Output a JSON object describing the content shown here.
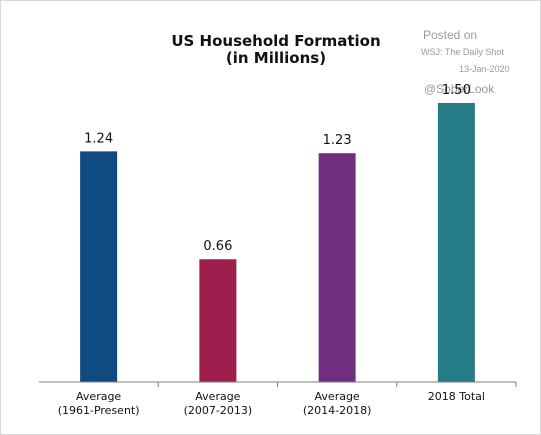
{
  "watermark": {
    "posted_on": "Posted on",
    "source": "WSJ: The Daily Shot",
    "date": "13-Jan-2020",
    "handle": "@SoberLook"
  },
  "chart_data": {
    "type": "bar",
    "title": [
      "US Household Formation",
      "(in Millions)"
    ],
    "categories": [
      [
        "Average",
        "(1961-Present)"
      ],
      [
        "Average",
        "(2007-2013)"
      ],
      [
        "Average",
        "(2014-2018)"
      ],
      [
        "2018 Total"
      ]
    ],
    "values": [
      1.24,
      0.66,
      1.23,
      1.5
    ],
    "value_labels": [
      "1.24",
      "0.66",
      "1.23",
      "1.50"
    ],
    "colors": [
      "#0F4A80",
      "#9E1F4E",
      "#6F2E7E",
      "#267C86"
    ],
    "xlabel": "",
    "ylabel": "",
    "ylim": [
      0,
      1.6
    ],
    "grid": false,
    "legend": "none"
  }
}
